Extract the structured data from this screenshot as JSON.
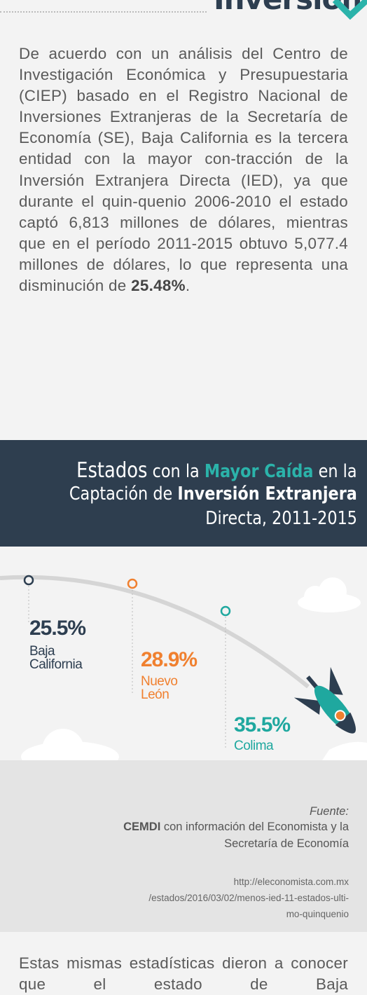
{
  "header": {
    "title": "Inversión"
  },
  "intro": {
    "text": "De acuerdo con un análisis del Centro de Investigación Económica y Presupuestaria (CIEP) basado en el Registro Nacional de Inversiones Extranjeras de la Secretaría de Economía (SE), Baja California es la tercera entidad con la mayor con-tracción de la Inversión Extranjera Directa (IED), ya que durante el quin-quenio 2006-2010 el estado captó 6,813 millones de dólares, mientras que en el período 2011-2015 obtuvo 5,077.4 millones de dólares, lo que representa una disminución de ",
    "emphasis": "25.48%",
    "end": "."
  },
  "infographic": {
    "title": [
      [
        "Estados",
        " con la ",
        "Mayor Caída",
        " en la"
      ],
      [
        "Captación de ",
        "Inversión Extranjera"
      ],
      [
        "Directa, 2011-2015"
      ]
    ],
    "items": [
      {
        "value": "25.5%",
        "name": "Baja California",
        "color": "#2d3e50"
      },
      {
        "value": "28.9%",
        "name": "Nuevo León",
        "color": "#f0802f"
      },
      {
        "value": "35.5%",
        "name": "Colima",
        "color": "#1fa89f"
      }
    ]
  },
  "source": {
    "label": "Fuente:",
    "org": "CEMDI",
    "line1": " con información del Economista y la",
    "line2": "Secretaría de Economía",
    "url_lines": [
      "http://eleconomista.com.mx",
      "/estados/2016/03/02/menos-ied-11-estados-ulti-",
      "mo-quinquenio"
    ]
  },
  "body": {
    "text": "Estas mismas estadísticas dieron a conocer que el estado de Baja"
  }
}
